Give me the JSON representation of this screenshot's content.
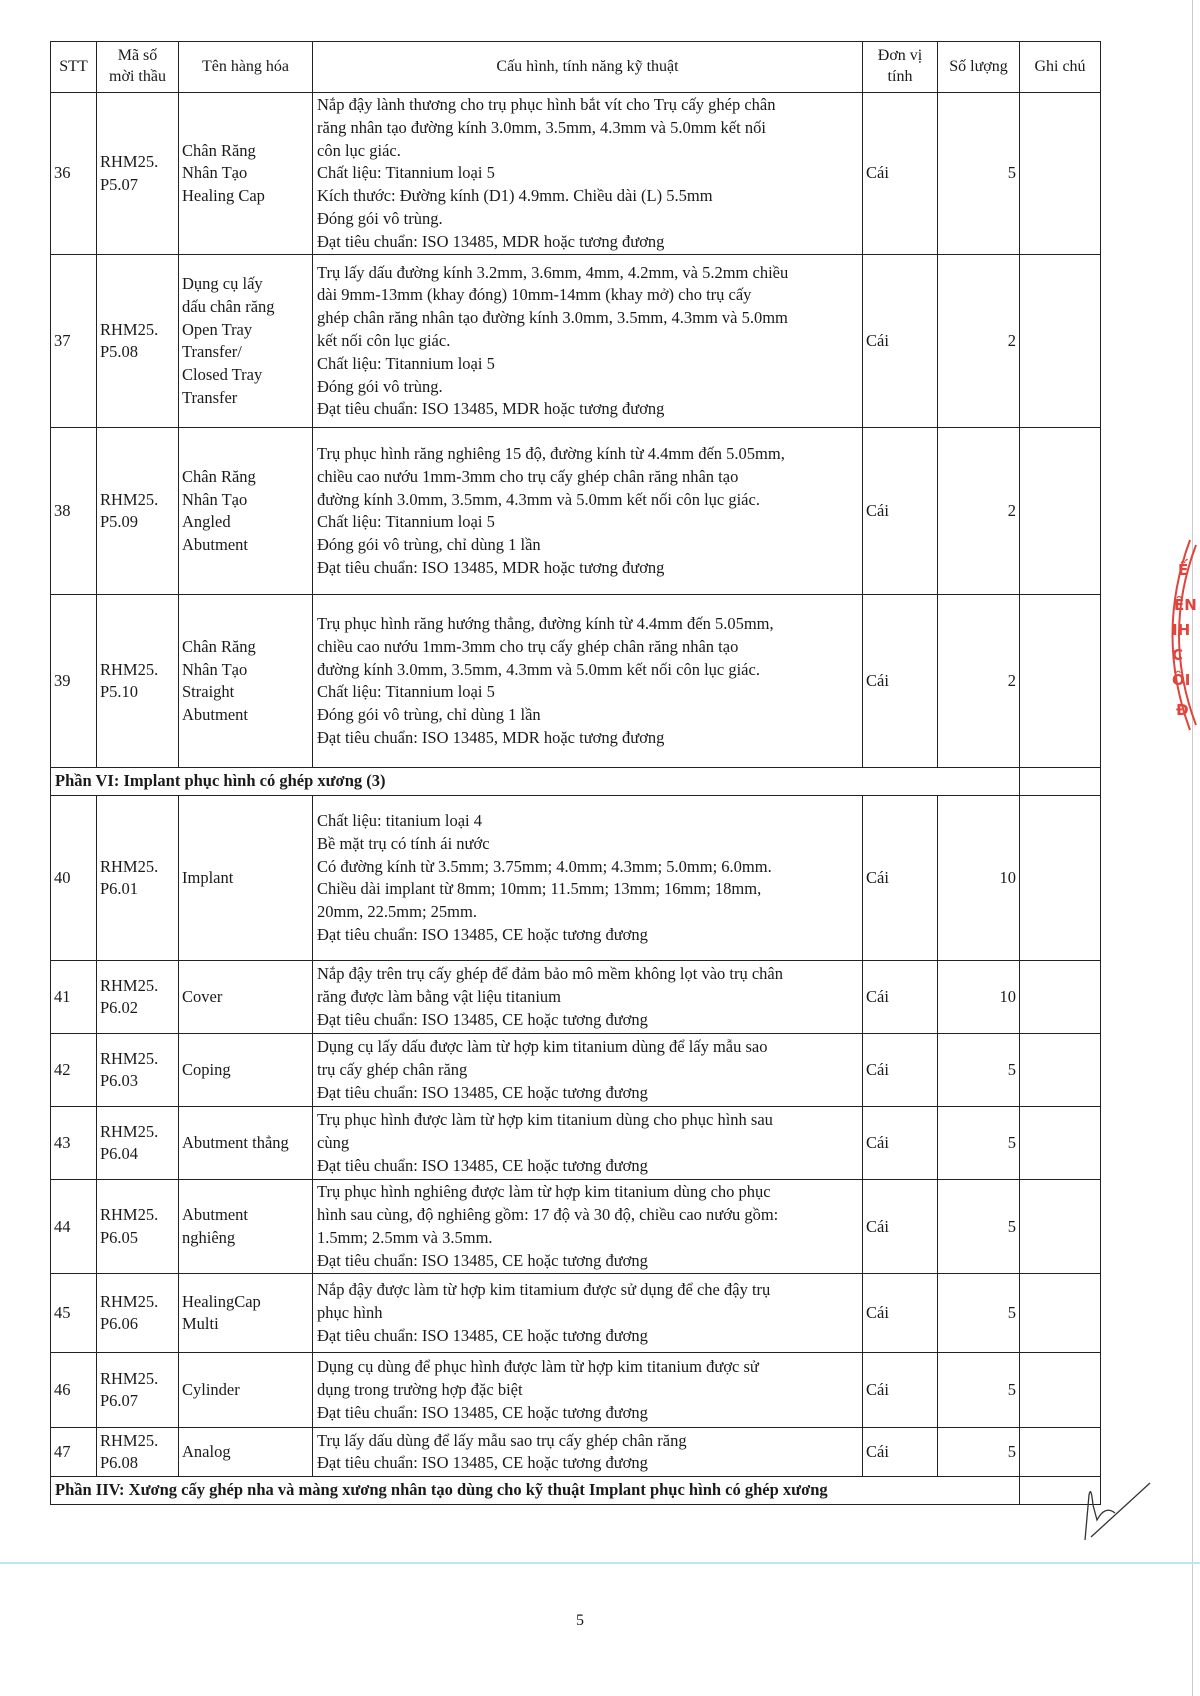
{
  "header": {
    "stt": "STT",
    "code": "Mã số\nmời thầu",
    "name": "Tên hàng hóa",
    "spec": "Cấu hình, tính năng kỹ thuật",
    "unit": "Đơn vị\ntính",
    "qty": "Số lượng",
    "note": "Ghi chú"
  },
  "rows_a": [
    {
      "stt": "36",
      "code": "RHM25.\nP5.07",
      "name": "Chân Răng\nNhân Tạo\nHealing Cap",
      "desc": "Nắp đậy lành thương cho trụ phục hình bắt vít cho Trụ cấy ghép chân\nrăng nhân tạo đường kính 3.0mm, 3.5mm, 4.3mm và 5.0mm kết nối\ncôn lục giác.\nChất liệu: Titannium loại 5\nKích thước: Đường kính (D1) 4.9mm. Chiều dài (L) 5.5mm\nĐóng gói vô trùng.\nĐạt tiêu chuẩn: ISO 13485, MDR hoặc tương đương",
      "unit": "Cái",
      "qty": "5",
      "note": ""
    },
    {
      "stt": "37",
      "code": "RHM25.\nP5.08",
      "name": "Dụng cụ lấy\ndấu chân răng\nOpen Tray\nTransfer/\nClosed Tray\nTransfer",
      "desc": "Trụ lấy dấu đường kính 3.2mm, 3.6mm, 4mm, 4.2mm, và 5.2mm chiều\ndài 9mm-13mm (khay đóng) 10mm-14mm (khay mở)  cho  trụ cấy\nghép chân răng nhân tạo đường kính 3.0mm, 3.5mm, 4.3mm và 5.0mm\nkết nối côn lục giác.\nChất liệu: Titannium loại 5\nĐóng gói vô trùng.\nĐạt tiêu chuẩn: ISO 13485, MDR hoặc tương đương",
      "unit": "Cái",
      "qty": "2",
      "note": ""
    },
    {
      "stt": "38",
      "code": "RHM25.\nP5.09",
      "name": "Chân Răng\nNhân Tạo\nAngled\nAbutment",
      "desc": "Trụ phục hình răng nghiêng 15 độ, đường kính từ 4.4mm đến 5.05mm,\nchiều cao nướu  1mm-3mm  cho trụ cấy ghép chân răng nhân tạo\nđường kính 3.0mm, 3.5mm, 4.3mm và 5.0mm kết nối côn lục giác.\nChất liệu: Titannium loại 5\nĐóng gói vô trùng, chỉ dùng 1 lần\nĐạt tiêu chuẩn: ISO 13485, MDR hoặc tương đương",
      "unit": "Cái",
      "qty": "2",
      "note": ""
    },
    {
      "stt": "39",
      "code": "RHM25.\nP5.10",
      "name": "Chân Răng\nNhân Tạo\nStraight\nAbutment",
      "desc": "Trụ phục hình răng hướng thẳng, đường kính từ 4.4mm đến 5.05mm,\nchiều cao nướu  1mm-3mm  cho trụ cấy ghép chân răng nhân tạo\nđường kính 3.0mm, 3.5mm, 4.3mm và 5.0mm kết nối côn lục giác.\nChất liệu: Titannium loại 5\nĐóng gói vô trùng, chỉ dùng 1 lần\nĐạt tiêu chuẩn: ISO 13485, MDR hoặc tương đương",
      "unit": "Cái",
      "qty": "2",
      "note": ""
    }
  ],
  "section_6": "Phần VI: Implant phục hình có ghép xương (3)",
  "rows_b": [
    {
      "stt": "40",
      "code": "RHM25.\nP6.01",
      "name": "Implant",
      "desc": "Chất liệu: titanium loại 4\nBề mặt trụ có tính ái nước\nCó đường kính từ 3.5mm; 3.75mm;  4.0mm; 4.3mm; 5.0mm; 6.0mm.\nChiều dài implant từ 8mm; 10mm; 11.5mm; 13mm; 16mm; 18mm,\n20mm, 22.5mm; 25mm.\nĐạt tiêu chuẩn: ISO 13485, CE hoặc tương đương",
      "unit": "Cái",
      "qty": "10",
      "note": ""
    },
    {
      "stt": "41",
      "code": "RHM25.\nP6.02",
      "name": "Cover",
      "desc": "Nắp đậy trên trụ cấy ghép để đảm bảo mô mềm không lọt vào trụ chân\nrăng được làm bằng vật liệu titanium\nĐạt tiêu chuẩn: ISO 13485, CE hoặc tương đương",
      "unit": "Cái",
      "qty": "10",
      "note": ""
    },
    {
      "stt": "42",
      "code": "RHM25.\nP6.03",
      "name": "Coping",
      "desc": "Dụng cụ lấy dấu được làm từ hợp kim titanium dùng để lấy mẫu sao\ntrụ cấy ghép chân răng\nĐạt tiêu chuẩn: ISO 13485, CE hoặc tương đương",
      "unit": "Cái",
      "qty": "5",
      "note": ""
    },
    {
      "stt": "43",
      "code": "RHM25.\nP6.04",
      "name": "Abutment thẳng",
      "desc": "Trụ phục hình được làm từ hợp kim titanium dùng cho phục hình sau\ncùng\nĐạt tiêu chuẩn: ISO 13485, CE hoặc tương đương",
      "unit": "Cái",
      "qty": "5",
      "note": ""
    },
    {
      "stt": "44",
      "code": "RHM25.\nP6.05",
      "name": "Abutment\nnghiêng",
      "desc": "Trụ phục hình nghiêng được làm từ hợp kim titanium dùng cho phục\nhình sau cùng, độ nghiêng gồm: 17 độ và 30 độ, chiều cao nướu gồm:\n1.5mm; 2.5mm và 3.5mm.\nĐạt tiêu chuẩn: ISO 13485, CE hoặc tương đương",
      "unit": "Cái",
      "qty": "5",
      "note": ""
    },
    {
      "stt": "45",
      "code": "RHM25.\nP6.06",
      "name": "HealingCap\nMulti",
      "desc": "Nắp đậy được làm từ hợp kim titamium được sử dụng để che đậy trụ\nphục hình\nĐạt tiêu chuẩn: ISO 13485, CE hoặc tương đương",
      "unit": "Cái",
      "qty": "5",
      "note": ""
    },
    {
      "stt": "46",
      "code": "RHM25.\nP6.07",
      "name": "Cylinder",
      "desc": "Dụng cụ dùng để phục hình được làm từ hợp kim titanium được sử\ndụng trong trường hợp đặc biệt\nĐạt tiêu chuẩn: ISO 13485, CE hoặc tương đương",
      "unit": "Cái",
      "qty": "5",
      "note": ""
    },
    {
      "stt": "47",
      "code": "RHM25.\nP6.08",
      "name": "Analog",
      "desc": "Trụ lấy dấu dùng để lấy mẫu sao trụ cấy ghép chân răng\nĐạt tiêu chuẩn: ISO 13485, CE hoặc tương đương",
      "unit": "Cái",
      "qty": "5",
      "note": ""
    }
  ],
  "section_7": "Phần IIV: Xương cấy ghép nha và màng xương nhân tạo dùng cho kỹ thuật Implant phục hình có ghép xương",
  "page_number": "5",
  "colors": {
    "stamp": "#e0443c",
    "ink": "#1a1a1a",
    "scan_line": "#bfe6ea"
  }
}
